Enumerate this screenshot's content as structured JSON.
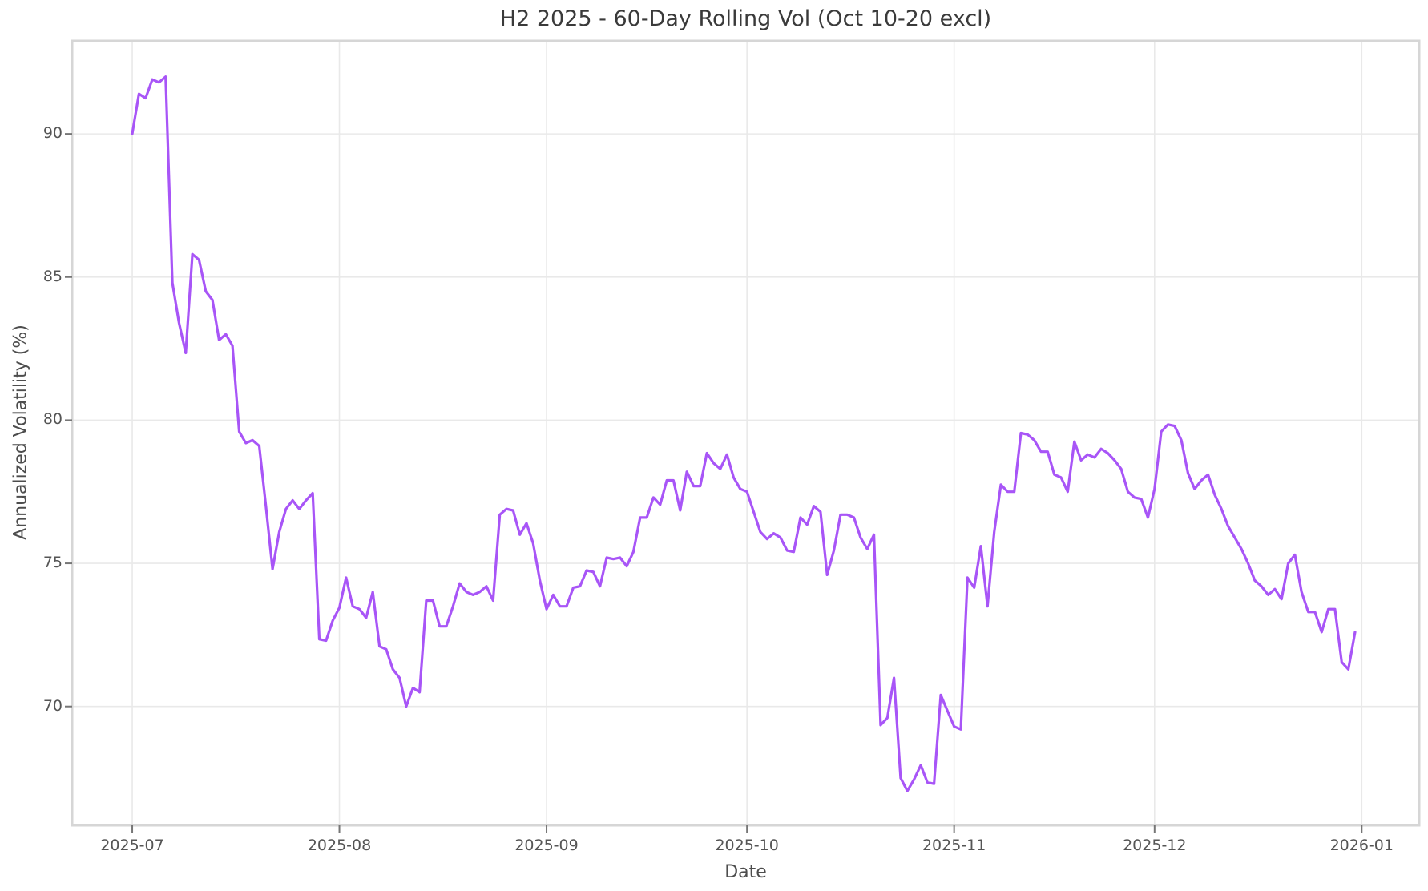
{
  "chart_data": {
    "type": "line",
    "title": "H2 2025 - 60-Day Rolling Vol (Oct 10-20 excl)",
    "xlabel": "Date",
    "ylabel": "Annualized Volatility (%)",
    "legend": "none",
    "grid": true,
    "x_tick_labels": [
      "2025-07",
      "2025-08",
      "2025-09",
      "2025-10",
      "2025-11",
      "2025-12",
      "2026-01"
    ],
    "x_tick_days_from_start": [
      0,
      31,
      62,
      92,
      123,
      153,
      184
    ],
    "y_ticks": [
      70,
      75,
      80,
      85,
      90
    ],
    "x_range_days": [
      -9.0,
      192.6
    ],
    "y_range": [
      65.85,
      93.25
    ],
    "series": [
      {
        "name": "60-day rolling volatility",
        "start_date": "2025-07-01",
        "frequency": "daily",
        "color": "#a855f7",
        "values": [
          90.0,
          91.4,
          91.25,
          91.9,
          91.8,
          92.0,
          84.8,
          83.4,
          82.35,
          85.8,
          85.6,
          84.5,
          84.2,
          82.8,
          83.0,
          82.6,
          79.6,
          79.2,
          79.3,
          79.1,
          77.0,
          74.8,
          76.1,
          76.9,
          77.2,
          76.9,
          77.2,
          77.45,
          72.35,
          72.3,
          73.0,
          73.45,
          74.5,
          73.5,
          73.4,
          73.1,
          74.0,
          72.1,
          72.0,
          71.3,
          71.0,
          70.0,
          70.65,
          70.5,
          73.7,
          73.7,
          72.8,
          72.8,
          73.5,
          74.3,
          74.0,
          73.9,
          74.0,
          74.2,
          73.7,
          76.7,
          76.9,
          76.85,
          76.0,
          76.4,
          75.7,
          74.4,
          73.4,
          73.9,
          73.5,
          73.5,
          74.15,
          74.2,
          74.75,
          74.7,
          74.2,
          75.2,
          75.15,
          75.2,
          74.9,
          75.4,
          76.6,
          76.6,
          77.3,
          77.05,
          77.9,
          77.9,
          76.85,
          78.2,
          77.7,
          77.7,
          78.85,
          78.5,
          78.3,
          78.8,
          78.0,
          77.6,
          77.5,
          76.8,
          76.1,
          75.85,
          76.05,
          75.9,
          75.45,
          75.4,
          76.6,
          76.35,
          77.0,
          76.8,
          74.6,
          75.45,
          76.7,
          76.7,
          76.6,
          75.9,
          75.5,
          76.0,
          69.35,
          69.6,
          71.0,
          67.5,
          67.05,
          67.45,
          67.95,
          67.35,
          67.3,
          70.4,
          69.85,
          69.3,
          69.2,
          74.5,
          74.15,
          75.6,
          73.5,
          76.1,
          77.75,
          77.5,
          77.5,
          79.55,
          79.5,
          79.3,
          78.9,
          78.9,
          78.1,
          78.0,
          77.5,
          79.25,
          78.6,
          78.8,
          78.7,
          79.0,
          78.85,
          78.6,
          78.3,
          77.5,
          77.3,
          77.25,
          76.6,
          77.6,
          79.6,
          79.85,
          79.8,
          79.3,
          78.15,
          77.6,
          77.9,
          78.1,
          77.4,
          76.9,
          76.3,
          75.9,
          75.5,
          75.0,
          74.4,
          74.2,
          73.9,
          74.1,
          73.75,
          75.0,
          75.3,
          74.0,
          73.3,
          73.3,
          72.6,
          73.4,
          73.4,
          71.55,
          71.3,
          72.6
        ]
      }
    ],
    "colors": {
      "line": "#a855f7",
      "grid": "#e9e9e9",
      "spine": "#d6d6d6",
      "tick_mark": "#767676",
      "tick_text": "#555555",
      "title_text": "#3a3a3a",
      "background": "#ffffff"
    }
  }
}
